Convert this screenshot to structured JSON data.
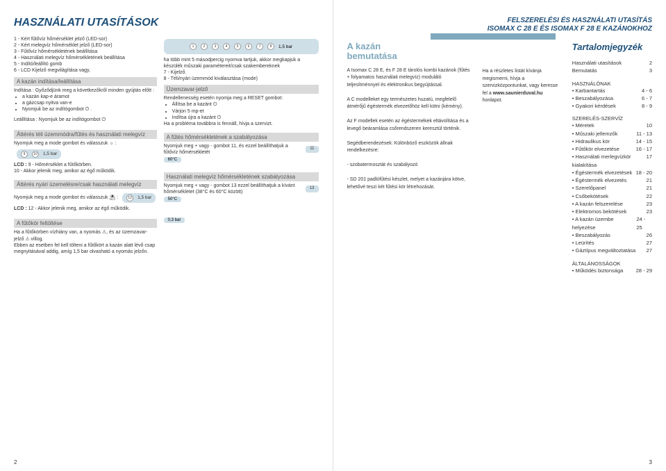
{
  "colors": {
    "brand": "#1d4f79",
    "accent": "#7fa9bd",
    "panel": "#cfdfe8",
    "grey": "#d9d9d9"
  },
  "left": {
    "title": "HASZNÁLATI UTASÍTÁSOK",
    "legend": {
      "l1": "1 - Kért fűtővíz hőmérséklet jelző (LED-sor)",
      "l2": "2 - Kért melegvíz hőmérséklet jelző (LED-sor)",
      "l3": "3 - Fűtővíz hőmérsékletének beállítása",
      "l4": "4 - Használati melegvíz hőmérsékletének beállítása",
      "l5": "5 - Indító/leállító gomb",
      "l6": "6 - LCD Kijelző megvilágítása vagy,",
      "l7": "7 - Kijelző.",
      "l8": "8 - Téli/nyári üzemmód kiválasztása (mode)",
      "note": "ha több mint 5 másodpercig nyomva tartjuk, akkor megkapjuk a készülék műszaki paramétereit/csak szakembereknek",
      "panel_bar": "1,5 bar"
    },
    "boxes": {
      "start_title": "A kazán indítása/leállítása",
      "start_body1": "Indítása : Győződjünk meg a következőkről minden gyújtás előtt :",
      "start_b1": "a kazán kap-e áramot",
      "start_b2": "a gázcsap nyitva van-e",
      "start_b3": "Nyomjuk be az indítógombot ⏻ .",
      "stop_body": "Leállítása : Nyomjuk be az indítógombot ⏻",
      "uzem_title": "Üzemzavar-jelző",
      "uzem_body": "Rendellenesség esetén nyomja meg a RESET gombot:",
      "uzem_b1": "Állítsa be a kazánt ⏻",
      "uzem_b2": "Várjon 5 mp-et",
      "uzem_b3": "Indítsa újra a kazánt ⏻",
      "uzem_foot": "Ha a probléma továbbra is fennáll, hívja a szervizt.",
      "att1_title": "Áttérés téli üzemmódra/fűtés és használati melegvíz",
      "att1_b1": "Nyomjuk meg a mode gombot és válasszuk ☼ :",
      "att1_lcd": "LCD :",
      "att1_9": "9 - Hőmérséklet a fűtőkörben.",
      "att1_10": "10 - Akkor jelenik meg, amikor az égő működik.",
      "att1_panel": "1,5 bar",
      "futes_title": "A fűtés hőmérsékletének a szabályozása",
      "futes_b1": "Nyomjuk meg + vagy - gombot 11, és ezzel beállíthatjuk a fűtővíz hőmérsékletét",
      "futes_badge": "60°C",
      "futes_badge_num": "11",
      "att2_title": "Áttérés nyári üzemelésre/csak használati melegvíz",
      "att2_b1": "Nyomjuk meg a mode gombot és válasszuk ⛱ :",
      "att2_lcd": "LCD :",
      "att2_12": "12 - Akkor jelenik meg, amikor az égő működik.",
      "att2_panel": "1,5 bar",
      "hmv_title": "Használati melegvíz hőmérsékletének szabályozása",
      "hmv_b1": "Nyomjuk meg + vagy - gombot 13 ezzel beállíthatjuk a kívánt hőmérsékletet (38°C és 60°C között)",
      "hmv_badge": "50°C",
      "hmv_badge_num": "13",
      "fut_title": "A fűtőkör feltöltése",
      "fut_body1": "Ha a fűtőkörben vízhiány van, a nyomás ⚠, és az üzemzavar-jelző ⚠ villog.",
      "fut_body2": "Ebben az esetben fel kell tölteni a fűtőkört a kazán alatt lévő csap megnyitásával addig, amíg 1,5 bar olvasható a nyomás jelzőn.",
      "fut_badge": "0,3 bar"
    },
    "pagenum": "2"
  },
  "right": {
    "hdr1": "FELSZERELÉSI ÉS HASZNÁLATI UTASÍTÁS",
    "hdr2": "ISOMAX C 28 E ÉS ISOMAX F 28 E KAZÁNOKHOZ",
    "sec_title1": "A kazán",
    "sec_title2": "bemutatása",
    "p1": "A Isomax C 28 E, és F 28 E tárolós kombi kazánok (fűtés + folyamatos használati melegvíz) moduláló teljesítménnyel és elektronikus begyújtással.",
    "p2": "A C modelleket egy természetes huzatú, megfelelő átmérőjű égéstermék elvezetőhöz kell kötni (kémény).",
    "p3": "Az F modellek esetén az égéstermékek eltávolítása és a levegő beáramlása csőrendszeren keresztül történik.",
    "p4": "Segédberendezések: Különböző eszközök állnak rendelkezésre:",
    "p5": "- szobatermosztát és szabályozó",
    "p6": "- SD 201 padlófűtési készlet, melyet a kazánjára kötve, lehetővé teszi két fűtési kör létrehozását.",
    "q1": "Ha a részletes listát kívánja megismerni, hívja a szervizközpontunkat, vagy keresse fel a",
    "q2": "www.saunierduval.hu",
    "q3": "honlapot.",
    "toc_title": "Tartalomjegyzék",
    "toc": [
      {
        "l": "Használati utasítások",
        "p": "2"
      },
      {
        "l": "Bemutatás",
        "p": "3"
      }
    ],
    "toc_head1": "HASZNÁLÓNAK",
    "toc1": [
      {
        "l": "• Karbantartás",
        "p": "4 - 6"
      },
      {
        "l": "• Beszabályozása",
        "p": "6 - 7"
      },
      {
        "l": "• Gyakori kérdések",
        "p": "8 - 9"
      }
    ],
    "toc_head2": "SZERELÉS-SZERVÍZ",
    "toc2": [
      {
        "l": "• Méretek",
        "p": "10"
      },
      {
        "l": "• Műszaki jellemzők",
        "p": "11 - 13"
      },
      {
        "l": "• Hidraulikus kör",
        "p": "14 - 15"
      },
      {
        "l": "• Fűtőkör elvezetése",
        "p": "16 - 17"
      },
      {
        "l": "• Használati merlegvízkör kialakítása",
        "p": "17"
      },
      {
        "l": "• Égéstermék elvezetések",
        "p": "18 - 20"
      },
      {
        "l": "• Égéstermék elvezetés",
        "p": "21"
      },
      {
        "l": "• Szerelőpanel",
        "p": "21"
      },
      {
        "l": "• Csőbekötések",
        "p": "22"
      },
      {
        "l": "• A kazán felszerelése",
        "p": "23"
      },
      {
        "l": "• Elektromos bekötések",
        "p": "23"
      },
      {
        "l": "• A kazán üzembe helyezése",
        "p": "24 - 25"
      },
      {
        "l": "• Beszabályozás",
        "p": "26"
      },
      {
        "l": "• Leürítés",
        "p": "27"
      },
      {
        "l": "• Gáztípus megváltoztatása",
        "p": "27"
      }
    ],
    "toc_head3": "ÁLTALÁNOSSÁGOK",
    "toc3": [
      {
        "l": "• Működés biztonsága",
        "p": "28 - 29"
      }
    ],
    "pagenum": "3"
  }
}
